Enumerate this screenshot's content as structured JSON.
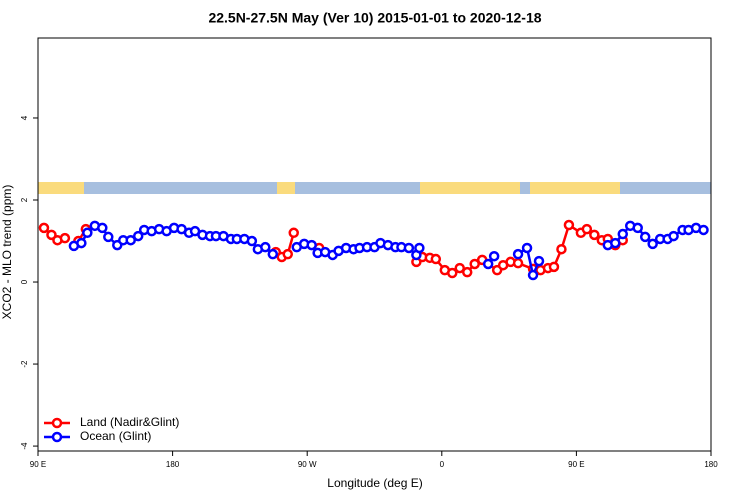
{
  "chart_data": {
    "type": "line",
    "title": "22.5N-27.5N May (Ver 10)   2015-01-01 to 2020-12-18",
    "x_label": "Longitude (deg E)",
    "y_label": "XCO2 - MLO trend (ppm)",
    "xlim": [
      90,
      540
    ],
    "ylim": [
      -4.12,
      5.95
    ],
    "xticks": [
      {
        "value": 90,
        "label": "90 E"
      },
      180,
      {
        "value": 270,
        "label": "90 W"
      },
      {
        "value": 360,
        "label": "0"
      },
      {
        "value": 450,
        "label": "90 E"
      },
      180
    ],
    "yticks": [
      -4,
      -2,
      0,
      2,
      4
    ],
    "legend": "bottom-left",
    "series": [
      {
        "name": "Land (Nadir&Glint)",
        "color": "#ff0000",
        "x": [
          94,
          99,
          103,
          108,
          null,
          117,
          122,
          null,
          249,
          253,
          257,
          261,
          null,
          278,
          null,
          343,
          347,
          352,
          356,
          362,
          367,
          372,
          377,
          382,
          387,
          397,
          401,
          406,
          411,
          421,
          426,
          431,
          435,
          440,
          445,
          453,
          457,
          462,
          467,
          471,
          476,
          481
        ],
        "values": [
          1.32,
          1.15,
          1.02,
          1.07,
          null,
          1.0,
          1.29,
          null,
          0.73,
          0.61,
          0.68,
          1.2,
          null,
          0.83,
          null,
          0.49,
          0.61,
          0.59,
          0.56,
          0.29,
          0.22,
          0.34,
          0.24,
          0.44,
          0.54,
          0.29,
          0.41,
          0.49,
          0.46,
          0.32,
          0.29,
          0.34,
          0.37,
          0.8,
          1.39,
          1.2,
          1.29,
          1.15,
          1.02,
          1.05,
          0.9,
          1.02
        ]
      },
      {
        "name": "Ocean (Glint)",
        "color": "#0000ff",
        "x": [
          114,
          119,
          123,
          128,
          133,
          137,
          143,
          147,
          152,
          157,
          161,
          166,
          171,
          176,
          181,
          186,
          191,
          195,
          200,
          205,
          209,
          214,
          219,
          223,
          228,
          233,
          237,
          242,
          247,
          null,
          263,
          268,
          273,
          277,
          282,
          287,
          291,
          296,
          301,
          305,
          310,
          315,
          319,
          324,
          329,
          333,
          338,
          343,
          345,
          null,
          391,
          395,
          null,
          411,
          417,
          421,
          425,
          null,
          471,
          476,
          481,
          486,
          491,
          496,
          501,
          506,
          511,
          515,
          521,
          525,
          530,
          535
        ],
        "values": [
          0.88,
          0.95,
          1.2,
          1.37,
          1.32,
          1.1,
          0.9,
          1.02,
          1.02,
          1.12,
          1.27,
          1.24,
          1.29,
          1.24,
          1.32,
          1.29,
          1.2,
          1.24,
          1.15,
          1.12,
          1.12,
          1.12,
          1.05,
          1.05,
          1.05,
          1.0,
          0.8,
          0.85,
          0.68,
          null,
          0.85,
          0.93,
          0.9,
          0.71,
          0.73,
          0.66,
          0.76,
          0.83,
          0.8,
          0.83,
          0.85,
          0.85,
          0.95,
          0.9,
          0.85,
          0.85,
          0.83,
          0.66,
          0.83,
          null,
          0.44,
          0.63,
          null,
          0.68,
          0.83,
          0.17,
          0.51,
          null,
          0.9,
          0.95,
          1.17,
          1.37,
          1.32,
          1.1,
          0.93,
          1.05,
          1.05,
          1.12,
          1.27,
          1.27,
          1.32,
          1.27
        ]
      }
    ]
  }
}
